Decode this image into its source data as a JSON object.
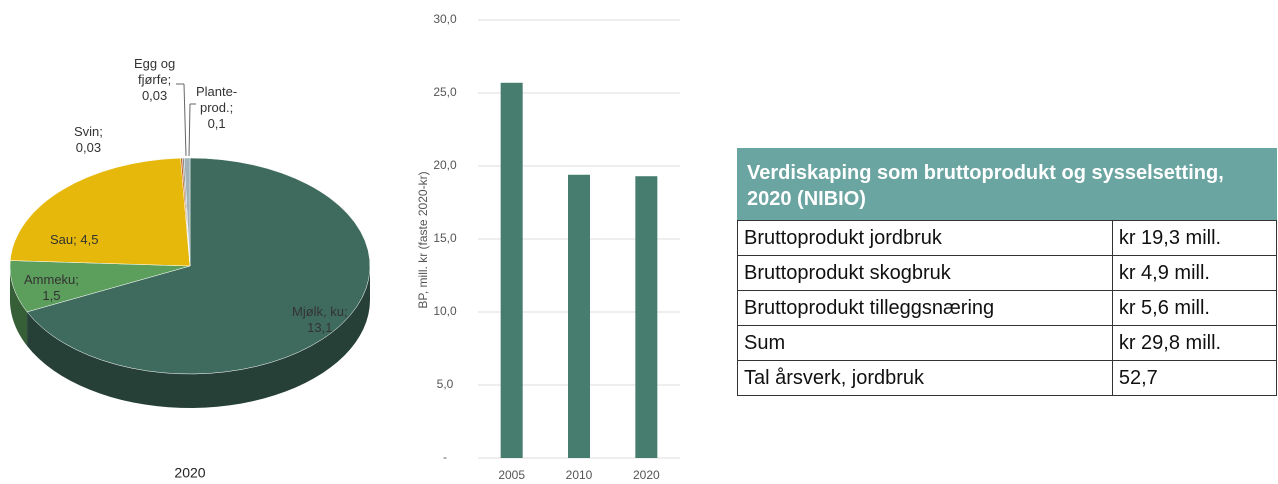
{
  "chart_data": [
    {
      "type": "pie",
      "title": "2020",
      "categories": [
        "Mjølk, ku;",
        "Ammeku;",
        "Sau;",
        "Svin;",
        "Egg og\nfjørfe;",
        "Plante-\nprod.;"
      ],
      "values": [
        13.1,
        1.5,
        4.5,
        0.03,
        0.03,
        0.1
      ],
      "value_labels": [
        "13,1",
        "1,5",
        "4,5",
        "0,03",
        "0,03",
        "0,1"
      ],
      "colors": [
        "#3f6b5e",
        "#5c9e5c",
        "#e5b80b",
        "#c0601a",
        "#8c8c8c",
        "#9fb3b8"
      ]
    },
    {
      "type": "bar",
      "y_label": "BP, mill. kr (faste 2020-kr)",
      "categories": [
        "2005",
        "2010",
        "2020"
      ],
      "values": [
        25.7,
        19.4,
        19.3
      ],
      "color": "#467d6e",
      "ylim": [
        0,
        30
      ],
      "yticks": [
        {
          "value": 0,
          "label": "-"
        },
        {
          "value": 5,
          "label": "5,0"
        },
        {
          "value": 10,
          "label": "10,0"
        },
        {
          "value": 15,
          "label": "15,0"
        },
        {
          "value": 20,
          "label": "20,0"
        },
        {
          "value": 25,
          "label": "25,0"
        },
        {
          "value": 30,
          "label": "30,0"
        }
      ],
      "grid": true
    }
  ],
  "table": {
    "title": "Verdiskaping som bruttoprodukt og sysselsetting, 2020 (NIBIO)",
    "rows": [
      [
        "Bruttoprodukt jordbruk",
        "kr 19,3 mill."
      ],
      [
        "Bruttoprodukt skogbruk",
        "kr 4,9 mill."
      ],
      [
        "Bruttoprodukt tilleggsnæring",
        "kr 5,6 mill."
      ],
      [
        "Sum",
        "kr 29,8 mill."
      ],
      [
        "Tal årsverk, jordbruk",
        "52,7"
      ]
    ]
  }
}
